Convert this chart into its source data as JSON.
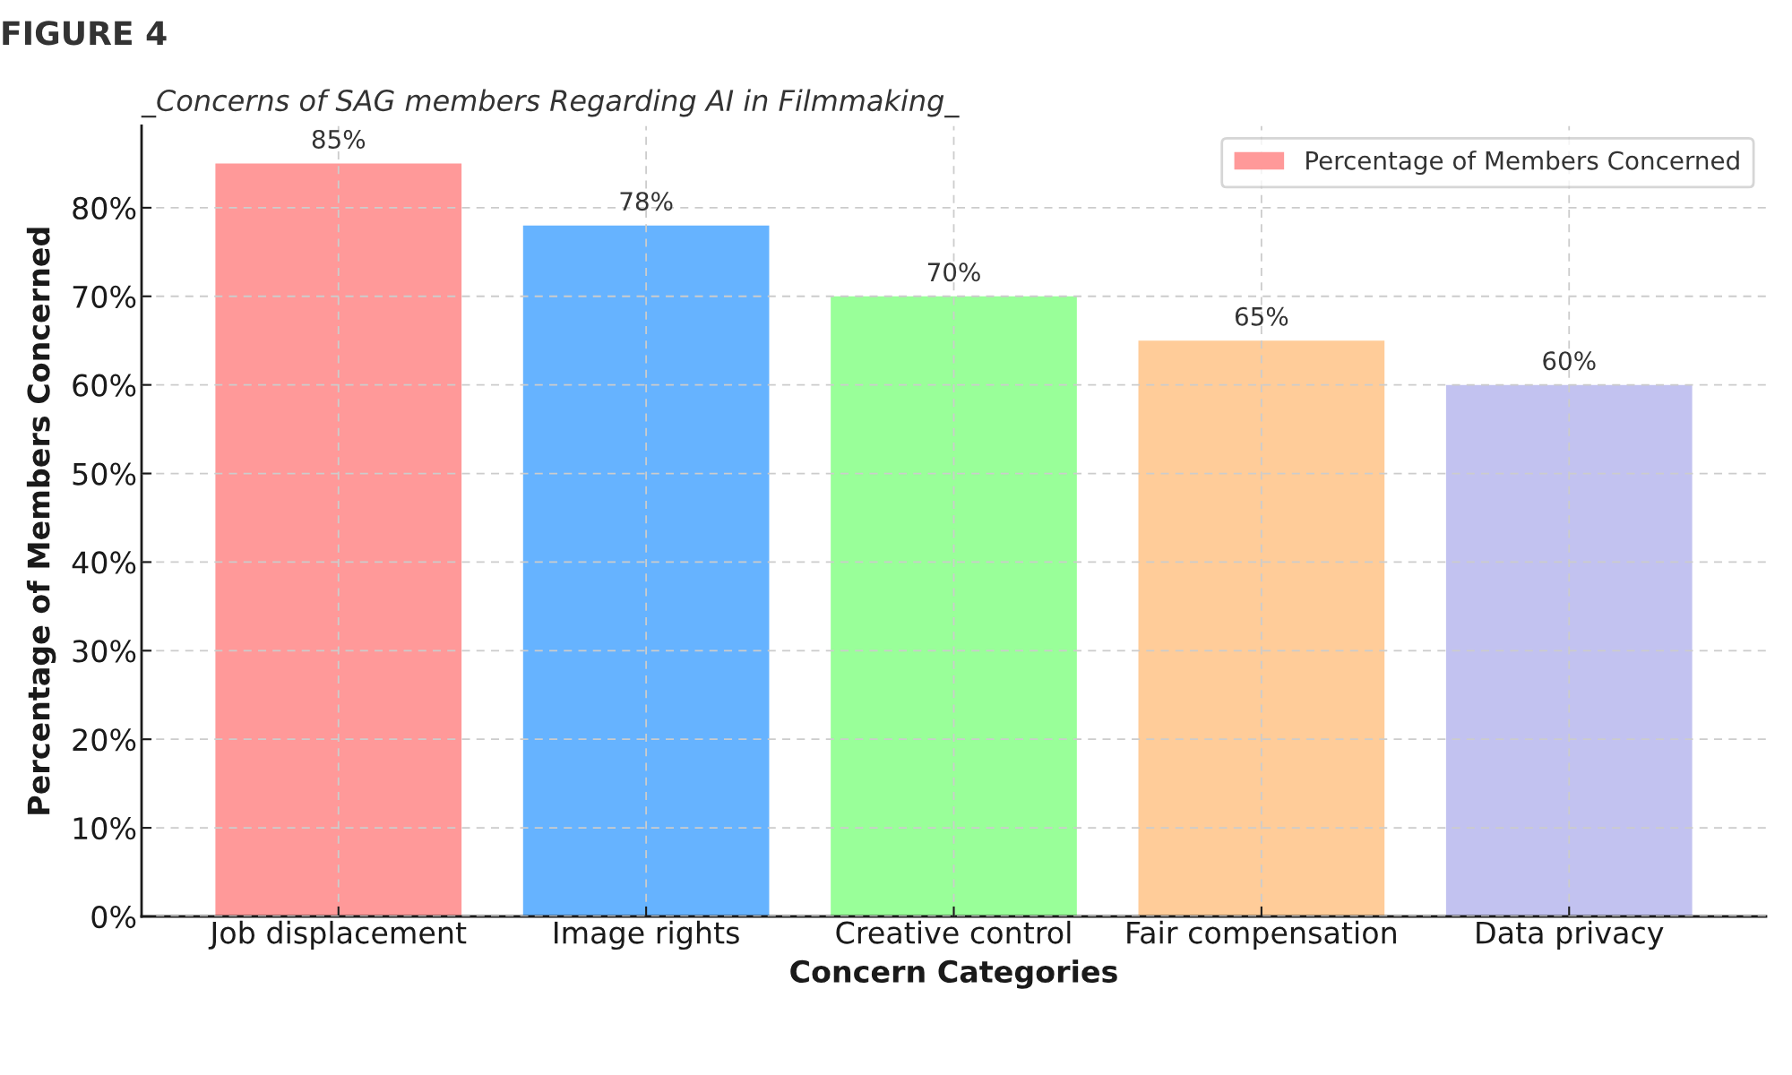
{
  "chart_data": {
    "type": "bar",
    "title": "_Concerns of SAG members Regarding AI in Filmmaking_",
    "xlabel": "Concern Categories",
    "ylabel": "Percentage of Members Concerned",
    "annotations": [
      "FIGURE 4"
    ],
    "categories": [
      "Job displacement",
      "Image rights",
      "Creative control",
      "Fair compensation",
      "Data privacy"
    ],
    "series": [
      {
        "name": "Percentage of Members Concerned",
        "colors": [
          "#ff9999",
          "#66b3ff",
          "#99ff99",
          "#ffcc99",
          "#c2c2f0"
        ],
        "values": [
          85,
          78,
          70,
          65,
          60
        ],
        "value_labels": [
          "85%",
          "78%",
          "70%",
          "65%",
          "60%"
        ]
      }
    ],
    "ylim": [
      0,
      89.25
    ],
    "yticks": [
      {
        "value": 0,
        "label": "0%"
      },
      {
        "value": 10,
        "label": "10%"
      },
      {
        "value": 20,
        "label": "20%"
      },
      {
        "value": 30,
        "label": "30%"
      },
      {
        "value": 40,
        "label": "40%"
      },
      {
        "value": 50,
        "label": "50%"
      },
      {
        "value": 60,
        "label": "60%"
      },
      {
        "value": 70,
        "label": "70%"
      },
      {
        "value": 80,
        "label": "80%"
      }
    ],
    "grid": true,
    "legend": "top right"
  }
}
